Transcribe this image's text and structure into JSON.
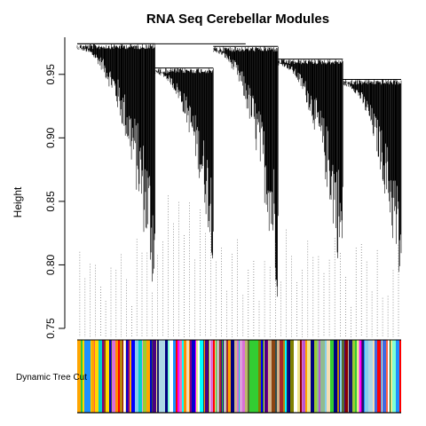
{
  "chart_data": {
    "type": "dendrogram",
    "title": "RNA Seq Cerebellar Modules",
    "ylabel": "Height",
    "ylim": [
      0.75,
      0.975
    ],
    "yticks": [
      0.75,
      0.8,
      0.85,
      0.9,
      0.95
    ],
    "ytick_labels": [
      "0.75",
      "0.80",
      "0.85",
      "0.90",
      "0.95"
    ],
    "colorbar_label": "Dynamic Tree Cut",
    "root_height": 0.974,
    "branches": [
      {
        "x": [
          0.0,
          0.24
        ],
        "top": 0.974,
        "leaf_min": 0.765
      },
      {
        "x": [
          0.24,
          0.42
        ],
        "top": 0.955,
        "leaf_min": 0.8
      },
      {
        "x": [
          0.42,
          0.62
        ],
        "top": 0.972,
        "leaf_min": 0.77
      },
      {
        "x": [
          0.62,
          0.82
        ],
        "top": 0.962,
        "leaf_min": 0.775
      },
      {
        "x": [
          0.82,
          1.0
        ],
        "top": 0.946,
        "leaf_min": 0.765
      }
    ],
    "module_colors": [
      "#b8860b",
      "#ffd700",
      "#8b4513",
      "#00ffff",
      "#ffffff",
      "#00ced1",
      "#1e90ff",
      "#0000cd",
      "#4169e1",
      "#0000ff",
      "#191970",
      "#87ceeb",
      "#7fffd4",
      "#556b2f",
      "#d2b48c",
      "#f5deb3",
      "#ff8c00",
      "#ff0000",
      "#8b0000",
      "#a52a2a",
      "#bdb76b",
      "#9acd32",
      "#8fbc8f",
      "#ff69b4",
      "#ba55d3",
      "#800080",
      "#ff00ff",
      "#da70d6",
      "#000080",
      "#4b0082",
      "#dda0dd",
      "#32cd32",
      "#808000",
      "#ffa500",
      "#c0c0c0",
      "#ff6347",
      "#006400",
      "#2f4f4f",
      "#add8e6",
      "#f0e68c"
    ]
  }
}
